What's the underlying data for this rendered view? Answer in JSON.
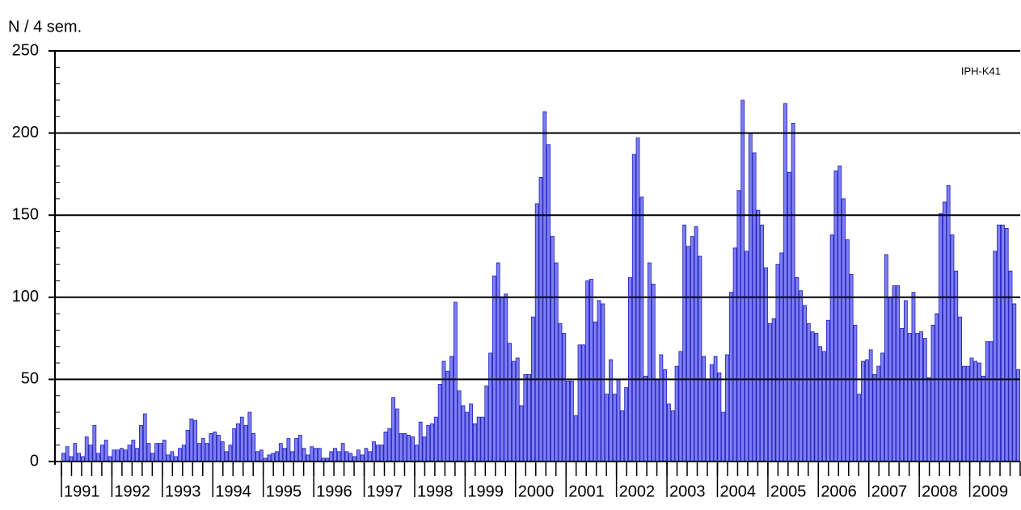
{
  "chart_data": {
    "type": "bar",
    "y_label": "N / 4 sem.",
    "annotation": "IPH-K41",
    "color": "#7f7ff5",
    "grid": true,
    "ylim": [
      0,
      250
    ],
    "yticks": [
      0,
      50,
      100,
      150,
      200,
      250
    ],
    "categories": [
      "1991",
      null,
      null,
      null,
      null,
      null,
      null,
      null,
      null,
      null,
      null,
      null,
      null,
      "1992",
      null,
      null,
      null,
      null,
      null,
      null,
      null,
      null,
      null,
      null,
      null,
      null,
      "1993",
      null,
      null,
      null,
      null,
      null,
      null,
      null,
      null,
      null,
      null,
      null,
      null,
      "1994",
      null,
      null,
      null,
      null,
      null,
      null,
      null,
      null,
      null,
      null,
      null,
      null,
      "1995",
      null,
      null,
      null,
      null,
      null,
      null,
      null,
      null,
      null,
      null,
      null,
      null,
      "1996",
      null,
      null,
      null,
      null,
      null,
      null,
      null,
      null,
      null,
      null,
      null,
      null,
      "1997",
      null,
      null,
      null,
      null,
      null,
      null,
      null,
      null,
      null,
      null,
      null,
      null,
      "1998",
      null,
      null,
      null,
      null,
      null,
      null,
      null,
      null,
      null,
      null,
      null,
      null,
      "1999",
      null,
      null,
      null,
      null,
      null,
      null,
      null,
      null,
      null,
      null,
      null,
      null,
      "2000",
      null,
      null,
      null,
      null,
      null,
      null,
      null,
      null,
      null,
      null,
      null,
      null,
      "2001",
      null,
      null,
      null,
      null,
      null,
      null,
      null,
      null,
      null,
      null,
      null,
      null,
      "2002",
      null,
      null,
      null,
      null,
      null,
      null,
      null,
      null,
      null,
      null,
      null,
      null,
      "2003",
      null,
      null,
      null,
      null,
      null,
      null,
      null,
      null,
      null,
      null,
      null,
      null,
      "2004",
      null,
      null,
      null,
      null,
      null,
      null,
      null,
      null,
      null,
      null,
      null,
      null,
      "2005",
      null,
      null,
      null,
      null,
      null,
      null,
      null,
      null,
      null,
      null,
      null,
      null,
      "2006",
      null,
      null,
      null,
      null,
      null,
      null,
      null,
      null,
      null,
      null,
      null,
      null,
      "2007",
      null,
      null,
      null,
      null,
      null,
      null,
      null,
      null,
      null,
      null,
      null,
      null,
      "2008",
      null,
      null,
      null,
      null,
      null,
      null,
      null,
      null,
      null,
      null,
      null,
      null,
      "2009",
      null,
      null,
      null,
      null,
      null,
      null,
      null,
      null,
      null,
      null,
      null,
      null
    ],
    "values": [
      5,
      9,
      3,
      11,
      5,
      3,
      15,
      10,
      22,
      5,
      10,
      13,
      3,
      7,
      7,
      8,
      7,
      10,
      13,
      8,
      22,
      29,
      11,
      5,
      11,
      11,
      13,
      4,
      6,
      3,
      8,
      10,
      19,
      26,
      25,
      11,
      14,
      11,
      17,
      18,
      16,
      12,
      6,
      10,
      20,
      23,
      27,
      22,
      30,
      17,
      6,
      7,
      2,
      4,
      5,
      6,
      11,
      8,
      14,
      6,
      14,
      16,
      8,
      4,
      9,
      8,
      8,
      2,
      2,
      6,
      8,
      6,
      11,
      6,
      5,
      3,
      7,
      4,
      8,
      6,
      12,
      10,
      10,
      18,
      20,
      39,
      32,
      17,
      17,
      16,
      15,
      10,
      24,
      15,
      22,
      23,
      27,
      47,
      61,
      55,
      64,
      97,
      43,
      34,
      30,
      35,
      23,
      27,
      27,
      46,
      66,
      113,
      121,
      100,
      102,
      72,
      61,
      63,
      34,
      53,
      53,
      88,
      157,
      173,
      213,
      193,
      137,
      121,
      84,
      78,
      49,
      49,
      28,
      71,
      71,
      110,
      111,
      85,
      98,
      96,
      41,
      62,
      41,
      50,
      31,
      45,
      112,
      187,
      197,
      161,
      52,
      121,
      108,
      50,
      65,
      56,
      35,
      31,
      58,
      67,
      144,
      131,
      137,
      143,
      125,
      64,
      50,
      59,
      64,
      54,
      30,
      65,
      103,
      130,
      165,
      220,
      128,
      200,
      188,
      153,
      144,
      118,
      84,
      87,
      120,
      127,
      218,
      176,
      206,
      112,
      104,
      95,
      84,
      79,
      78,
      70,
      67,
      86,
      138,
      177,
      180,
      160,
      135,
      114,
      83,
      41,
      61,
      62,
      68,
      53,
      58,
      66,
      126,
      100,
      107,
      107,
      81,
      98,
      78,
      103,
      78,
      79,
      75,
      51,
      83,
      90,
      151,
      158,
      168,
      138,
      116,
      88,
      58,
      58,
      63,
      61,
      60,
      52,
      73,
      73,
      128,
      144,
      144,
      142,
      116,
      96,
      56
    ]
  }
}
